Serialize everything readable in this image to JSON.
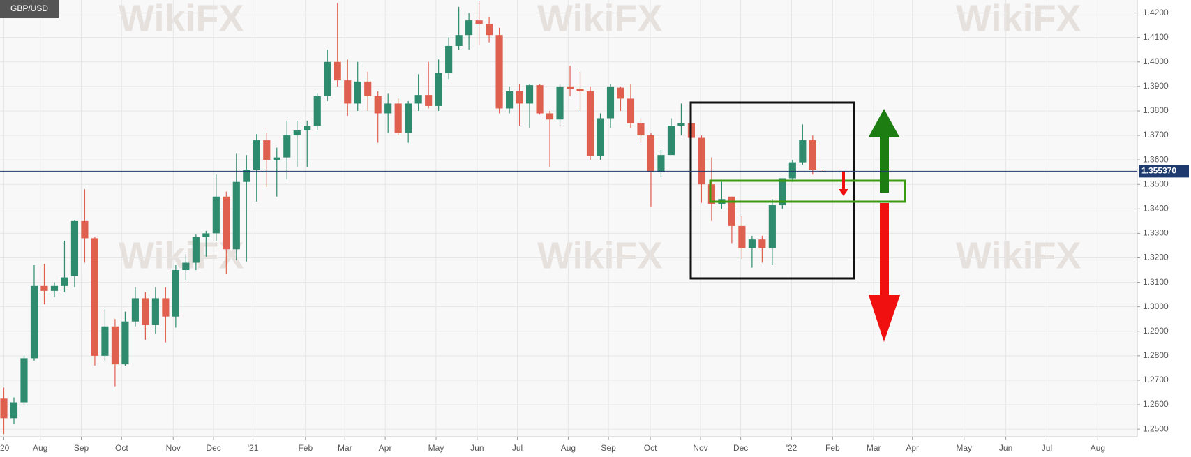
{
  "chart_data": {
    "type": "candlestick",
    "title": "GBP/USD",
    "watermark": "WikiFX",
    "up_color": "#2e8b6e",
    "down_color": "#e0604f",
    "grid": true,
    "x": [
      0,
      1,
      2,
      3,
      4,
      5,
      6,
      7,
      8,
      9,
      10,
      11,
      12,
      13,
      14,
      15,
      16,
      17,
      18,
      19,
      20,
      21,
      22,
      23,
      24,
      25,
      26,
      27,
      28,
      29,
      30,
      31,
      32,
      33,
      34,
      35,
      36,
      37,
      38,
      39,
      40,
      41,
      42,
      43,
      44,
      45,
      46,
      47,
      48,
      49,
      50,
      51,
      52,
      53,
      54,
      55,
      56,
      57,
      58,
      59,
      60,
      61,
      62,
      63,
      64,
      65,
      66,
      67,
      68,
      69,
      70,
      71,
      72,
      73,
      74,
      75,
      76,
      77,
      78,
      79,
      80,
      81
    ],
    "open": [
      1.2625,
      1.2545,
      1.261,
      1.279,
      1.3085,
      1.3065,
      1.3085,
      1.3125,
      1.335,
      1.328,
      1.28,
      1.292,
      1.2765,
      1.294,
      1.3035,
      1.2925,
      1.3035,
      1.296,
      1.315,
      1.318,
      1.3285,
      1.33,
      1.345,
      1.3235,
      1.351,
      1.356,
      1.368,
      1.36,
      1.361,
      1.37,
      1.372,
      1.374,
      1.386,
      1.4,
      1.3925,
      1.383,
      1.392,
      1.386,
      1.379,
      1.383,
      1.371,
      1.383,
      1.3865,
      1.382,
      1.3955,
      1.4065,
      1.411,
      1.417,
      1.4155,
      1.411,
      1.381,
      1.388,
      1.383,
      1.3905,
      1.379,
      1.3765,
      1.39,
      1.389,
      1.388,
      1.3615,
      1.377,
      1.3895,
      1.385,
      1.375,
      1.37,
      1.355,
      1.362,
      1.374,
      1.375,
      1.369,
      1.35,
      1.342,
      1.345,
      1.333,
      1.324,
      1.3275,
      1.324,
      1.3415,
      1.3525,
      1.359,
      1.368,
      1.3555
    ],
    "high": [
      1.267,
      1.263,
      1.28,
      1.317,
      1.3175,
      1.31,
      1.327,
      1.3355,
      1.348,
      1.3285,
      1.299,
      1.295,
      1.298,
      1.308,
      1.306,
      1.308,
      1.308,
      1.317,
      1.3215,
      1.3295,
      1.331,
      1.354,
      1.347,
      1.3625,
      1.362,
      1.3705,
      1.371,
      1.365,
      1.376,
      1.376,
      1.376,
      1.387,
      1.405,
      1.424,
      1.401,
      1.4,
      1.396,
      1.388,
      1.387,
      1.385,
      1.384,
      1.395,
      1.4,
      1.401,
      1.41,
      1.4225,
      1.42,
      1.425,
      1.4185,
      1.414,
      1.39,
      1.391,
      1.391,
      1.391,
      1.38,
      1.391,
      1.3985,
      1.396,
      1.39,
      1.379,
      1.391,
      1.39,
      1.391,
      1.377,
      1.371,
      1.364,
      1.377,
      1.383,
      1.376,
      1.37,
      1.361,
      1.351,
      1.345,
      1.337,
      1.329,
      1.329,
      1.344,
      1.352,
      1.36,
      1.3745,
      1.37,
      1.356
    ],
    "low": [
      1.248,
      1.252,
      1.26,
      1.278,
      1.301,
      1.304,
      1.306,
      1.308,
      1.318,
      1.276,
      1.278,
      1.2675,
      1.276,
      1.292,
      1.2865,
      1.289,
      1.2855,
      1.2915,
      1.311,
      1.315,
      1.3205,
      1.327,
      1.3135,
      1.319,
      1.3185,
      1.343,
      1.349,
      1.345,
      1.352,
      1.357,
      1.357,
      1.372,
      1.384,
      1.39,
      1.378,
      1.38,
      1.38,
      1.367,
      1.371,
      1.37,
      1.367,
      1.38,
      1.381,
      1.38,
      1.393,
      1.405,
      1.405,
      1.407,
      1.408,
      1.379,
      1.379,
      1.374,
      1.373,
      1.3785,
      1.357,
      1.374,
      1.386,
      1.38,
      1.36,
      1.36,
      1.373,
      1.38,
      1.373,
      1.367,
      1.341,
      1.353,
      1.362,
      1.37,
      1.369,
      1.3425,
      1.335,
      1.34,
      1.326,
      1.3195,
      1.316,
      1.318,
      1.317,
      1.34,
      1.351,
      1.358,
      1.354,
      1.355
    ],
    "close": [
      1.2545,
      1.261,
      1.279,
      1.3085,
      1.3065,
      1.3085,
      1.312,
      1.335,
      1.328,
      1.28,
      1.292,
      1.2765,
      1.294,
      1.3035,
      1.2925,
      1.3035,
      1.296,
      1.315,
      1.318,
      1.3285,
      1.33,
      1.345,
      1.3235,
      1.351,
      1.356,
      1.368,
      1.36,
      1.361,
      1.37,
      1.372,
      1.374,
      1.386,
      1.4,
      1.3925,
      1.383,
      1.392,
      1.386,
      1.379,
      1.383,
      1.371,
      1.383,
      1.3865,
      1.382,
      1.3955,
      1.4065,
      1.411,
      1.417,
      1.4155,
      1.411,
      1.381,
      1.388,
      1.383,
      1.3905,
      1.379,
      1.3765,
      1.39,
      1.389,
      1.388,
      1.3615,
      1.377,
      1.39,
      1.385,
      1.375,
      1.37,
      1.355,
      1.362,
      1.374,
      1.375,
      1.369,
      1.35,
      1.342,
      1.344,
      1.333,
      1.324,
      1.3275,
      1.324,
      1.3415,
      1.3525,
      1.359,
      1.368,
      1.356,
      1.3554
    ],
    "xlim": [
      -0.38,
      112.1
    ],
    "ylim": [
      1.2469,
      1.4253
    ],
    "xticks": [
      {
        "value": 0,
        "label": "'20"
      },
      {
        "value": 3.6,
        "label": "Aug"
      },
      {
        "value": 7.66,
        "label": "Sep"
      },
      {
        "value": 11.65,
        "label": "Oct"
      },
      {
        "value": 16.75,
        "label": "Nov"
      },
      {
        "value": 20.74,
        "label": "Dec"
      },
      {
        "value": 24.64,
        "label": "'21"
      },
      {
        "value": 29.83,
        "label": "Feb"
      },
      {
        "value": 33.73,
        "label": "Mar"
      },
      {
        "value": 37.72,
        "label": "Apr"
      },
      {
        "value": 42.75,
        "label": "May"
      },
      {
        "value": 46.81,
        "label": "Jun"
      },
      {
        "value": 50.79,
        "label": "Jul"
      },
      {
        "value": 55.82,
        "label": "Aug"
      },
      {
        "value": 59.8,
        "label": "Sep"
      },
      {
        "value": 63.94,
        "label": "Oct"
      },
      {
        "value": 68.9,
        "label": "Nov"
      },
      {
        "value": 72.88,
        "label": "Dec"
      },
      {
        "value": 77.91,
        "label": "'22"
      },
      {
        "value": 81.97,
        "label": "Feb"
      },
      {
        "value": 86.03,
        "label": "Mar"
      },
      {
        "value": 89.86,
        "label": "Apr"
      },
      {
        "value": 94.97,
        "label": "May"
      },
      {
        "value": 99.1,
        "label": "Jun"
      },
      {
        "value": 103.16,
        "label": "Jul"
      },
      {
        "value": 108.19,
        "label": "Aug"
      }
    ],
    "yticks": [
      {
        "value": 1.25,
        "label": "1.2500"
      },
      {
        "value": 1.26,
        "label": "1.2600"
      },
      {
        "value": 1.27,
        "label": "1.2700"
      },
      {
        "value": 1.28,
        "label": "1.2800"
      },
      {
        "value": 1.29,
        "label": "1.2900"
      },
      {
        "value": 1.3,
        "label": "1.3000"
      },
      {
        "value": 1.31,
        "label": "1.3100"
      },
      {
        "value": 1.32,
        "label": "1.3200"
      },
      {
        "value": 1.33,
        "label": "1.3300"
      },
      {
        "value": 1.34,
        "label": "1.3400"
      },
      {
        "value": 1.35,
        "label": "1.3500"
      },
      {
        "value": 1.36,
        "label": "1.3600"
      },
      {
        "value": 1.37,
        "label": "1.3700"
      },
      {
        "value": 1.38,
        "label": "1.3800"
      },
      {
        "value": 1.39,
        "label": "1.3900"
      },
      {
        "value": 1.4,
        "label": "1.4000"
      },
      {
        "value": 1.41,
        "label": "1.4100"
      },
      {
        "value": 1.42,
        "label": "1.4200"
      }
    ],
    "last_price": {
      "value": 1.35537,
      "label": "1.355370"
    }
  }
}
